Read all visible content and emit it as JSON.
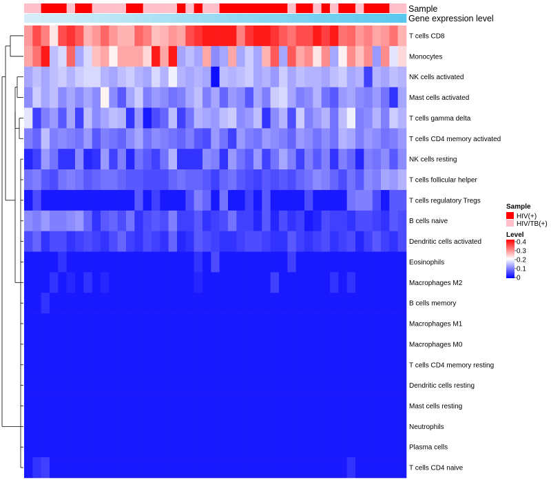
{
  "chart_data": {
    "type": "heatmap",
    "annotation_rows": [
      "Sample",
      "Gene expression level"
    ],
    "row_labels": [
      "T cells CD8",
      "Monocytes",
      "NK cells activated",
      "Mast cells activated",
      "T cells gamma delta",
      "T cells CD4 memory activated",
      "NK cells resting",
      "T cells follicular helper",
      "T cells regulatory  Tregs",
      "B cells naive",
      "Dendritic cells activated",
      "Eosinophils",
      "Macrophages M2",
      "B cells memory",
      "Macrophages M1",
      "Macrophages M0",
      "T cells CD4 memory resting",
      "Dendritic cells resting",
      "Mast cells resting",
      "Neutrophils",
      "Plasma cells",
      "T cells CD4 naive"
    ],
    "n_columns": 45,
    "sample_groups": [
      "P",
      "P",
      "R",
      "R",
      "R",
      "P",
      "R",
      "R",
      "P",
      "P",
      "P",
      "P",
      "R",
      "R",
      "P",
      "P",
      "P",
      "P",
      "R",
      "P",
      "R",
      "P",
      "P",
      "R",
      "R",
      "R",
      "R",
      "R",
      "R",
      "R",
      "R",
      "P",
      "R",
      "R",
      "P",
      "R",
      "P",
      "R",
      "R",
      "P",
      "R",
      "R",
      "R",
      "P",
      "P"
    ],
    "sample_colors": {
      "R": "#ff0000",
      "P": "#ffc0cb"
    },
    "legend": {
      "sample_title": "Sample",
      "groups": [
        {
          "key": "R",
          "label": "HIV(+)"
        },
        {
          "key": "P",
          "label": "HIV/TB(+)"
        }
      ],
      "level_title": "Level",
      "level_ticks": [
        "0.4",
        "0.3",
        "0.2",
        "0.1",
        "0"
      ]
    },
    "color_scale": {
      "low": "#0000ff",
      "mid": "#ffffff",
      "high": "#ff0000",
      "mid_value": 0.2,
      "max_value": 0.4
    },
    "values": [
      [
        0.28,
        0.34,
        0.3,
        0.22,
        0.34,
        0.36,
        0.33,
        0.26,
        0.28,
        0.32,
        0.28,
        0.26,
        0.26,
        0.32,
        0.3,
        0.25,
        0.26,
        0.28,
        0.27,
        0.34,
        0.36,
        0.38,
        0.38,
        0.38,
        0.38,
        0.3,
        0.36,
        0.38,
        0.38,
        0.36,
        0.33,
        0.31,
        0.34,
        0.34,
        0.38,
        0.35,
        0.38,
        0.31,
        0.32,
        0.28,
        0.3,
        0.27,
        0.28,
        0.31,
        0.26
      ],
      [
        0.27,
        0.31,
        0.38,
        0.15,
        0.17,
        0.32,
        0.13,
        0.17,
        0.25,
        0.27,
        0.21,
        0.27,
        0.27,
        0.27,
        0.23,
        0.38,
        0.27,
        0.38,
        0.13,
        0.15,
        0.13,
        0.27,
        0.11,
        0.13,
        0.27,
        0.13,
        0.16,
        0.13,
        0.26,
        0.33,
        0.13,
        0.33,
        0.27,
        0.29,
        0.22,
        0.29,
        0.13,
        0.21,
        0.29,
        0.25,
        0.29,
        0.12,
        0.29,
        0.18,
        0.23
      ],
      [
        0.13,
        0.15,
        0.13,
        0.15,
        0.16,
        0.14,
        0.16,
        0.17,
        0.17,
        0.14,
        0.13,
        0.15,
        0.16,
        0.14,
        0.13,
        0.17,
        0.14,
        0.19,
        0.14,
        0.13,
        0.14,
        0.13,
        0.01,
        0.15,
        0.14,
        0.15,
        0.16,
        0.13,
        0.14,
        0.12,
        0.16,
        0.13,
        0.15,
        0.14,
        0.14,
        0.13,
        0.15,
        0.16,
        0.13,
        0.14,
        0.05,
        0.14,
        0.13,
        0.15,
        0.14
      ],
      [
        0.11,
        0.16,
        0.13,
        0.15,
        0.11,
        0.13,
        0.11,
        0.13,
        0.11,
        0.21,
        0.11,
        0.07,
        0.13,
        0.16,
        0.1,
        0.12,
        0.11,
        0.09,
        0.1,
        0.13,
        0.15,
        0.1,
        0.13,
        0.08,
        0.12,
        0.11,
        0.07,
        0.13,
        0.1,
        0.16,
        0.17,
        0.13,
        0.1,
        0.11,
        0.14,
        0.09,
        0.07,
        0.12,
        0.13,
        0.11,
        0.1,
        0.12,
        0.09,
        0.04,
        0.13
      ],
      [
        0.18,
        0.05,
        0.1,
        0.12,
        0.07,
        0.13,
        0.05,
        0.15,
        0.11,
        0.13,
        0.15,
        0.14,
        0.04,
        0.12,
        0.02,
        0.06,
        0.08,
        0.15,
        0.05,
        0.09,
        0.14,
        0.13,
        0.12,
        0.15,
        0.16,
        0.11,
        0.12,
        0.15,
        0.04,
        0.11,
        0.14,
        0.06,
        0.16,
        0.1,
        0.12,
        0.14,
        0.09,
        0.15,
        0.19,
        0.1,
        0.11,
        0.14,
        0.1,
        0.16,
        0.14
      ],
      [
        0.1,
        0.08,
        0.15,
        0.1,
        0.11,
        0.1,
        0.09,
        0.12,
        0.07,
        0.1,
        0.09,
        0.08,
        0.11,
        0.13,
        0.09,
        0.11,
        0.1,
        0.09,
        0.08,
        0.1,
        0.07,
        0.06,
        0.12,
        0.09,
        0.05,
        0.12,
        0.1,
        0.09,
        0.12,
        0.11,
        0.1,
        0.08,
        0.12,
        0.11,
        0.09,
        0.11,
        0.09,
        0.14,
        0.13,
        0.1,
        0.12,
        0.11,
        0.09,
        0.1,
        0.12
      ],
      [
        0.03,
        0.05,
        0.12,
        0.09,
        0.04,
        0.04,
        0.11,
        0.03,
        0.04,
        0.12,
        0.05,
        0.1,
        0.03,
        0.09,
        0.07,
        0.05,
        0.09,
        0.14,
        0.04,
        0.04,
        0.04,
        0.11,
        0.1,
        0.04,
        0.12,
        0.09,
        0.07,
        0.12,
        0.05,
        0.09,
        0.13,
        0.1,
        0.05,
        0.1,
        0.07,
        0.1,
        0.04,
        0.1,
        0.08,
        0.03,
        0.1,
        0.09,
        0.11,
        0.07,
        0.11
      ],
      [
        0.09,
        0.1,
        0.07,
        0.06,
        0.09,
        0.1,
        0.09,
        0.07,
        0.08,
        0.09,
        0.09,
        0.08,
        0.07,
        0.07,
        0.06,
        0.06,
        0.06,
        0.08,
        0.09,
        0.08,
        0.08,
        0.07,
        0.05,
        0.08,
        0.09,
        0.07,
        0.06,
        0.05,
        0.07,
        0.06,
        0.07,
        0.06,
        0.08,
        0.09,
        0.11,
        0.1,
        0.08,
        0.06,
        0.09,
        0.07,
        0.11,
        0.1,
        0.13,
        0.12,
        0.14
      ],
      [
        0.02,
        0.06,
        0.02,
        0.02,
        0.02,
        0.02,
        0.02,
        0.02,
        0.02,
        0.02,
        0.02,
        0.02,
        0.02,
        0.07,
        0.02,
        0.05,
        0.02,
        0.02,
        0.02,
        0.06,
        0.1,
        0.08,
        0.02,
        0.09,
        0.02,
        0.02,
        0.05,
        0.02,
        0.07,
        0.02,
        0.02,
        0.02,
        0.02,
        0.06,
        0.02,
        0.02,
        0.02,
        0.02,
        0.09,
        0.1,
        0.1,
        0.06,
        0.02,
        0.07,
        0.07
      ],
      [
        0.11,
        0.1,
        0.12,
        0.1,
        0.1,
        0.11,
        0.12,
        0.08,
        0.04,
        0.07,
        0.08,
        0.06,
        0.09,
        0.04,
        0.06,
        0.07,
        0.06,
        0.1,
        0.05,
        0.05,
        0.07,
        0.04,
        0.05,
        0.06,
        0.09,
        0.05,
        0.05,
        0.03,
        0.07,
        0.03,
        0.06,
        0.04,
        0.05,
        0.02,
        0.03,
        0.06,
        0.05,
        0.05,
        0.04,
        0.06,
        0.06,
        0.05,
        0.04,
        0.07,
        0.06
      ],
      [
        0.06,
        0.08,
        0.04,
        0.06,
        0.06,
        0.04,
        0.05,
        0.06,
        0.05,
        0.04,
        0.06,
        0.08,
        0.05,
        0.04,
        0.06,
        0.05,
        0.04,
        0.08,
        0.03,
        0.04,
        0.07,
        0.06,
        0.05,
        0.04,
        0.04,
        0.05,
        0.06,
        0.06,
        0.05,
        0.04,
        0.04,
        0.07,
        0.05,
        0.04,
        0.05,
        0.06,
        0.04,
        0.05,
        0.06,
        0.03,
        0.05,
        0.07,
        0.05,
        0.04,
        0.06
      ],
      [
        0.02,
        0.02,
        0.02,
        0.02,
        0.04,
        0.02,
        0.02,
        0.02,
        0.02,
        0.02,
        0.02,
        0.02,
        0.02,
        0.02,
        0.02,
        0.02,
        0.02,
        0.02,
        0.02,
        0.02,
        0.04,
        0.02,
        0.06,
        0.02,
        0.02,
        0.02,
        0.02,
        0.02,
        0.02,
        0.02,
        0.02,
        0.05,
        0.02,
        0.02,
        0.02,
        0.02,
        0.02,
        0.02,
        0.02,
        0.02,
        0.02,
        0.02,
        0.02,
        0.02,
        0.02
      ],
      [
        0.02,
        0.02,
        0.02,
        0.04,
        0.02,
        0.03,
        0.02,
        0.04,
        0.02,
        0.03,
        0.02,
        0.02,
        0.02,
        0.02,
        0.02,
        0.02,
        0.02,
        0.02,
        0.02,
        0.02,
        0.03,
        0.02,
        0.02,
        0.02,
        0.02,
        0.02,
        0.02,
        0.02,
        0.02,
        0.05,
        0.02,
        0.02,
        0.02,
        0.02,
        0.02,
        0.02,
        0.04,
        0.02,
        0.04,
        0.02,
        0.02,
        0.02,
        0.02,
        0.02,
        0.02
      ],
      [
        0.02,
        0.02,
        0.04,
        0.02,
        0.02,
        0.02,
        0.02,
        0.02,
        0.02,
        0.02,
        0.02,
        0.02,
        0.02,
        0.02,
        0.02,
        0.02,
        0.02,
        0.02,
        0.02,
        0.02,
        0.02,
        0.02,
        0.02,
        0.02,
        0.02,
        0.02,
        0.02,
        0.02,
        0.02,
        0.02,
        0.02,
        0.02,
        0.02,
        0.02,
        0.02,
        0.02,
        0.02,
        0.02,
        0.02,
        0.02,
        0.02,
        0.02,
        0.02,
        0.02,
        0.02
      ],
      [
        0.02,
        0.02,
        0.02,
        0.02,
        0.02,
        0.02,
        0.02,
        0.02,
        0.02,
        0.02,
        0.02,
        0.02,
        0.02,
        0.02,
        0.02,
        0.02,
        0.02,
        0.02,
        0.02,
        0.02,
        0.02,
        0.02,
        0.02,
        0.02,
        0.02,
        0.02,
        0.02,
        0.02,
        0.02,
        0.02,
        0.02,
        0.02,
        0.02,
        0.02,
        0.02,
        0.02,
        0.02,
        0.02,
        0.02,
        0.02,
        0.02,
        0.02,
        0.02,
        0.02,
        0.02
      ],
      [
        0.02,
        0.02,
        0.02,
        0.02,
        0.02,
        0.02,
        0.02,
        0.02,
        0.02,
        0.02,
        0.02,
        0.02,
        0.02,
        0.02,
        0.02,
        0.02,
        0.02,
        0.02,
        0.02,
        0.02,
        0.02,
        0.02,
        0.02,
        0.02,
        0.02,
        0.02,
        0.02,
        0.02,
        0.02,
        0.02,
        0.02,
        0.02,
        0.02,
        0.02,
        0.02,
        0.02,
        0.02,
        0.02,
        0.02,
        0.02,
        0.02,
        0.02,
        0.02,
        0.02,
        0.02
      ],
      [
        0.02,
        0.02,
        0.02,
        0.02,
        0.02,
        0.02,
        0.02,
        0.02,
        0.02,
        0.02,
        0.02,
        0.02,
        0.02,
        0.02,
        0.02,
        0.02,
        0.02,
        0.02,
        0.02,
        0.02,
        0.02,
        0.02,
        0.02,
        0.02,
        0.02,
        0.02,
        0.02,
        0.02,
        0.02,
        0.02,
        0.02,
        0.02,
        0.02,
        0.02,
        0.02,
        0.02,
        0.02,
        0.02,
        0.02,
        0.02,
        0.02,
        0.02,
        0.02,
        0.02,
        0.02
      ],
      [
        0.02,
        0.02,
        0.02,
        0.02,
        0.02,
        0.02,
        0.02,
        0.02,
        0.02,
        0.02,
        0.02,
        0.02,
        0.02,
        0.02,
        0.02,
        0.02,
        0.02,
        0.02,
        0.02,
        0.02,
        0.02,
        0.02,
        0.02,
        0.02,
        0.02,
        0.02,
        0.02,
        0.02,
        0.02,
        0.02,
        0.02,
        0.02,
        0.02,
        0.02,
        0.02,
        0.02,
        0.02,
        0.02,
        0.02,
        0.02,
        0.02,
        0.02,
        0.02,
        0.02,
        0.02
      ],
      [
        0.02,
        0.02,
        0.02,
        0.02,
        0.02,
        0.02,
        0.02,
        0.02,
        0.02,
        0.02,
        0.02,
        0.02,
        0.02,
        0.02,
        0.02,
        0.02,
        0.02,
        0.02,
        0.02,
        0.02,
        0.02,
        0.02,
        0.02,
        0.02,
        0.02,
        0.02,
        0.02,
        0.02,
        0.02,
        0.02,
        0.02,
        0.02,
        0.02,
        0.02,
        0.02,
        0.02,
        0.02,
        0.02,
        0.02,
        0.02,
        0.02,
        0.02,
        0.02,
        0.02,
        0.02
      ],
      [
        0.02,
        0.02,
        0.02,
        0.02,
        0.02,
        0.02,
        0.02,
        0.02,
        0.02,
        0.02,
        0.02,
        0.02,
        0.02,
        0.02,
        0.02,
        0.02,
        0.02,
        0.02,
        0.02,
        0.02,
        0.02,
        0.02,
        0.02,
        0.02,
        0.02,
        0.02,
        0.02,
        0.02,
        0.02,
        0.02,
        0.02,
        0.02,
        0.02,
        0.02,
        0.02,
        0.02,
        0.02,
        0.02,
        0.02,
        0.02,
        0.02,
        0.02,
        0.02,
        0.02,
        0.02
      ],
      [
        0.02,
        0.02,
        0.02,
        0.02,
        0.02,
        0.02,
        0.02,
        0.02,
        0.02,
        0.02,
        0.02,
        0.02,
        0.02,
        0.02,
        0.02,
        0.02,
        0.02,
        0.02,
        0.02,
        0.02,
        0.02,
        0.02,
        0.02,
        0.02,
        0.02,
        0.02,
        0.02,
        0.02,
        0.02,
        0.02,
        0.02,
        0.02,
        0.02,
        0.02,
        0.02,
        0.02,
        0.02,
        0.02,
        0.02,
        0.02,
        0.02,
        0.02,
        0.02,
        0.02,
        0.02
      ],
      [
        0.02,
        0.04,
        0.05,
        0.02,
        0.02,
        0.02,
        0.02,
        0.02,
        0.02,
        0.02,
        0.02,
        0.02,
        0.02,
        0.02,
        0.02,
        0.02,
        0.02,
        0.02,
        0.02,
        0.02,
        0.02,
        0.02,
        0.02,
        0.02,
        0.02,
        0.02,
        0.02,
        0.02,
        0.02,
        0.02,
        0.02,
        0.02,
        0.02,
        0.02,
        0.02,
        0.02,
        0.02,
        0.02,
        0.04,
        0.02,
        0.02,
        0.02,
        0.02,
        0.02,
        0.02
      ]
    ]
  }
}
